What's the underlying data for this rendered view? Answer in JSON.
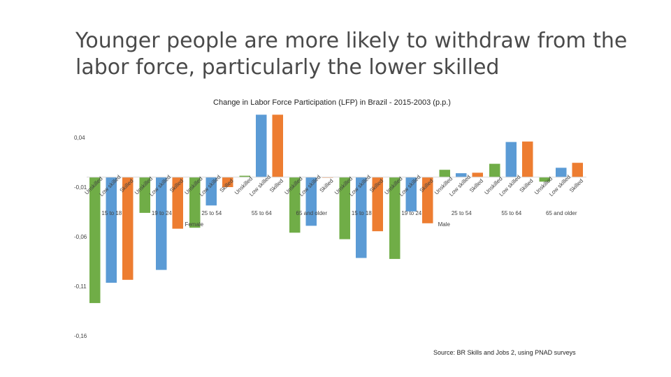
{
  "slide": {
    "title_line1": "Younger people are more likely to withdraw from the",
    "title_line2": "labor force, particularly the lower skilled",
    "source": "Source: BR Skills and Jobs 2, using PNAD surveys"
  },
  "colors": {
    "unskilled": "#70ad47",
    "low_skilled": "#5b9bd5",
    "skilled": "#ed7d31",
    "axis": "#d9d9d9",
    "text": "#404040"
  },
  "chart_data": {
    "type": "bar",
    "title": "Change in Labor Force Participation (LFP) in Brazil - 2015-2003 (p.p.)",
    "ylim": [
      -0.16,
      0.06
    ],
    "yticks": [
      0.04,
      -0.01,
      -0.06,
      -0.11,
      -0.16
    ],
    "ytick_labels": [
      "0,04",
      "-0,01",
      "-0,06",
      "-0,11",
      "-0,16"
    ],
    "grid": false,
    "skill_levels": [
      "Unskilled",
      "Low skilled",
      "Skilled"
    ],
    "groups": [
      {
        "gender": "Female",
        "age_groups": [
          {
            "label": "15 to 18",
            "values": [
              -0.127,
              -0.1065,
              -0.1035
            ]
          },
          {
            "label": "19 to 24",
            "values": [
              -0.036,
              -0.0935,
              -0.052
            ]
          },
          {
            "label": "25 to 54",
            "values": [
              -0.051,
              -0.0285,
              -0.01
            ]
          },
          {
            "label": "55 to 64",
            "values": [
              0.0015,
              0.063,
              0.063
            ]
          },
          {
            "label": "65 and older",
            "values": [
              -0.056,
              -0.049,
              0.0
            ]
          }
        ]
      },
      {
        "gender": "Male",
        "age_groups": [
          {
            "label": "15 to 18",
            "values": [
              -0.0625,
              -0.0815,
              -0.0545
            ]
          },
          {
            "label": "19 to 24",
            "values": [
              -0.0825,
              -0.0345,
              -0.0465
            ]
          },
          {
            "label": "25 to 54",
            "values": [
              0.0075,
              0.004,
              0.0045
            ]
          },
          {
            "label": "55 to 64",
            "values": [
              0.0135,
              0.0355,
              0.036
            ]
          },
          {
            "label": "65 and older",
            "values": [
              -0.0045,
              0.0095,
              0.0145
            ]
          }
        ]
      }
    ]
  }
}
